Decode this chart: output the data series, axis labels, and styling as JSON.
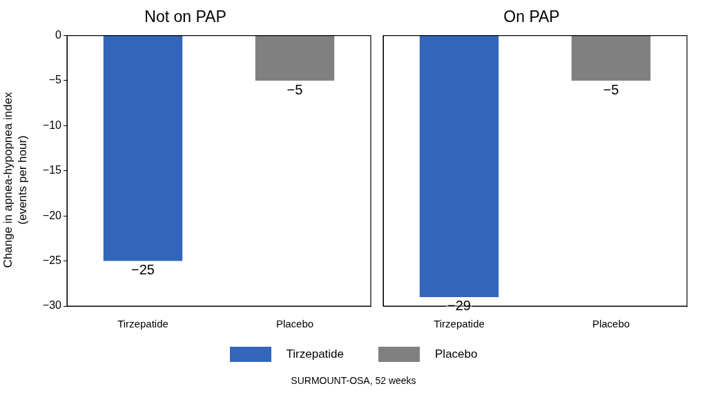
{
  "chart_data": [
    {
      "type": "bar",
      "title": "Not on PAP",
      "ylabel": "Change in apnea-hypopnea index\n(events per hour)",
      "categories": [
        "Tirzepatide",
        "Placebo"
      ],
      "stacked": true,
      "series": [
        {
          "name": "Tirzepatide",
          "color": "#3366bb",
          "values": [
            -25,
            null
          ]
        },
        {
          "name": "Placebo",
          "color": "#808080",
          "values": [
            null,
            -5
          ]
        }
      ],
      "ylim": [
        -30,
        0
      ],
      "yticks": [
        {
          "value": -30,
          "label": "−30"
        },
        {
          "value": -25,
          "label": "−25"
        },
        {
          "value": -20,
          "label": "−20"
        },
        {
          "value": -15,
          "label": "−15"
        },
        {
          "value": -10,
          "label": "−10"
        },
        {
          "value": -5,
          "label": "−5"
        },
        0
      ],
      "data_labels": true,
      "legend": "bottom",
      "annotations": [
        "SURMOUNT-OSA, 52 weeks"
      ]
    },
    {
      "type": "bar",
      "title": "On PAP",
      "categories": [
        "Tirzepatide",
        "Placebo"
      ],
      "stacked": true,
      "series": [
        {
          "color": "#3366bb",
          "values": [
            -29,
            null
          ]
        },
        {
          "color": "#808080",
          "values": [
            null,
            -5
          ]
        }
      ],
      "ylim": [
        -30,
        0
      ],
      "data_labels": true,
      "tick_labels": "x"
    }
  ]
}
